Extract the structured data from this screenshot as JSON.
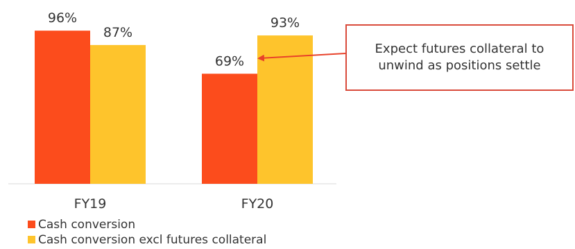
{
  "chart_data": {
    "type": "bar",
    "categories": [
      "FY19",
      "FY20"
    ],
    "series": [
      {
        "name": "Cash conversion",
        "values": [
          96,
          69
        ],
        "labels": [
          "96%",
          "69%"
        ],
        "color": "#fc4c1c"
      },
      {
        "name": "Cash conversion excl futures collateral",
        "values": [
          87,
          93
        ],
        "labels": [
          "87%",
          "93%"
        ],
        "color": "#fec42c"
      }
    ],
    "title": "",
    "xlabel": "",
    "ylabel": "",
    "ylim": [
      0,
      100
    ],
    "grid": false,
    "legend_position": "bottom-left",
    "annotation": {
      "text": "Expect futures collateral to unwind as positions settle",
      "points_to": {
        "category": "FY20",
        "series": "Cash conversion excl futures collateral"
      },
      "border_color": "#d94a3a",
      "arrow_color": "#e8422a"
    }
  }
}
